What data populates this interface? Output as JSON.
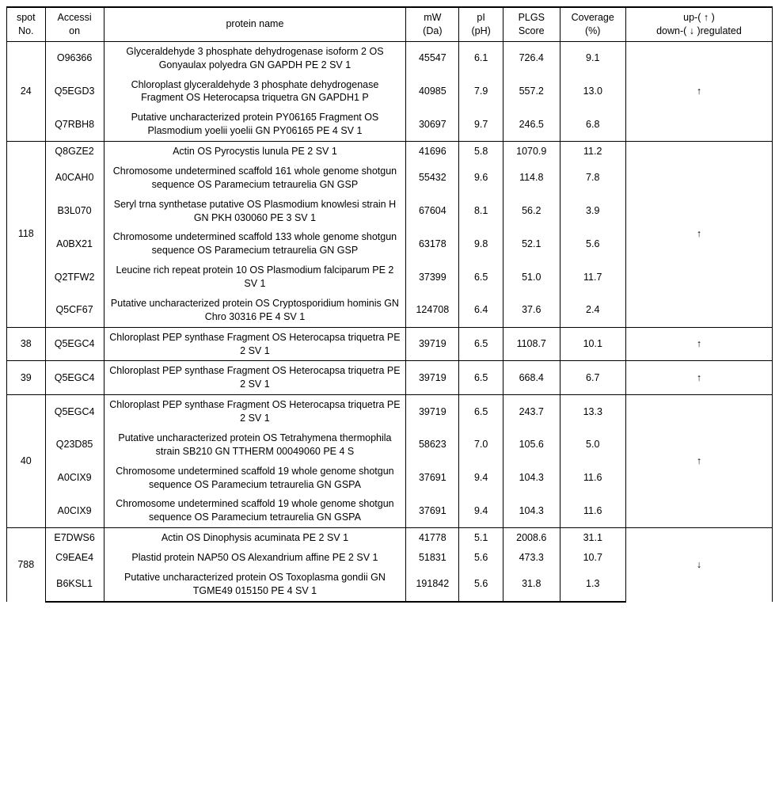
{
  "columns": {
    "spot": "spot\nNo.",
    "acc": "Accessi\non",
    "name": "protein name",
    "mw": "mW\n(Da)",
    "pi": "pI\n(pH)",
    "plgs": "PLGS\nScore",
    "cov": "Coverage\n(%)",
    "reg": "up-( ↑ )\ndown-( ↓ )regulated"
  },
  "groups": [
    {
      "spot": "24",
      "reg": "↑",
      "rows": [
        {
          "acc": "O96366",
          "name": "Glyceraldehyde 3 phosphate  dehydrogenase isoform 2 OS Gonyaulax polyedra GN GAPDH PE 2 SV 1",
          "mw": "45547",
          "pi": "6.1",
          "plgs": "726.4",
          "cov": "9.1"
        },
        {
          "acc": "Q5EGD3",
          "name": "Chloroplast glyceraldehyde 3  phosphate dehydrogenase Fragment OS Heterocapsa triquetra GN GAPDH1 P",
          "mw": "40985",
          "pi": "7.9",
          "plgs": "557.2",
          "cov": "13.0"
        },
        {
          "acc": "Q7RBH8",
          "name": "Putative uncharacterized protein  PY06165 Fragment OS Plasmodium yoelii yoelii GN PY06165 PE 4 SV 1",
          "mw": "30697",
          "pi": "9.7",
          "plgs": "246.5",
          "cov": "6.8"
        }
      ]
    },
    {
      "spot": "118",
      "reg": "↑",
      "rows": [
        {
          "acc": "Q8GZE2",
          "name": "Actin OS Pyrocystis  lunula PE 2 SV 1",
          "mw": "41696",
          "pi": "5.8",
          "plgs": "1070.9",
          "cov": "11.2"
        },
        {
          "acc": "A0CAH0",
          "name": "Chromosome undetermined scaffold 161  whole genome shotgun sequence OS Paramecium tetraurelia GN GSP",
          "mw": "55432",
          "pi": "9.6",
          "plgs": "114.8",
          "cov": "7.8"
        },
        {
          "acc": "B3L070",
          "name": "Seryl trna synthetase putative OS  Plasmodium knowlesi strain H GN PKH 030060 PE 3 SV 1",
          "mw": "67604",
          "pi": "8.1",
          "plgs": "56.2",
          "cov": "3.9"
        },
        {
          "acc": "A0BX21",
          "name": "Chromosome undetermined scaffold 133  whole genome shotgun sequence OS Paramecium tetraurelia GN GSP",
          "mw": "63178",
          "pi": "9.8",
          "plgs": "52.1",
          "cov": "5.6"
        },
        {
          "acc": "Q2TFW2",
          "name": "Leucine rich repeat protein 10 OS  Plasmodium falciparum PE 2 SV 1",
          "mw": "37399",
          "pi": "6.5",
          "plgs": "51.0",
          "cov": "11.7"
        },
        {
          "acc": "Q5CF67",
          "name": "Putative uncharacterized protein OS  Cryptosporidium hominis GN Chro 30316 PE 4 SV 1",
          "mw": "124708",
          "pi": "6.4",
          "plgs": "37.6",
          "cov": "2.4"
        }
      ]
    },
    {
      "spot": "38",
      "reg": "↑",
      "rows": [
        {
          "acc": "Q5EGC4",
          "name": "Chloroplast PEP  synthase Fragment OS Heterocapsa triquetra PE 2 SV 1",
          "mw": "39719",
          "pi": "6.5",
          "plgs": "1108.7",
          "cov": "10.1"
        }
      ]
    },
    {
      "spot": "39",
      "reg": "↑",
      "rows": [
        {
          "acc": "Q5EGC4",
          "name": "Chloroplast PEP  synthase Fragment OS Heterocapsa triquetra PE 2 SV 1",
          "mw": "39719",
          "pi": "6.5",
          "plgs": "668.4",
          "cov": "6.7"
        }
      ]
    },
    {
      "spot": "40",
      "reg": "↑",
      "rows": [
        {
          "acc": "Q5EGC4",
          "name": "Chloroplast PEP  synthase Fragment OS Heterocapsa triquetra PE 2 SV 1",
          "mw": "39719",
          "pi": "6.5",
          "plgs": "243.7",
          "cov": "13.3"
        },
        {
          "acc": "Q23D85",
          "name": "Putative uncharacterized protein OS  Tetrahymena thermophila strain SB210 GN TTHERM 00049060 PE 4 S",
          "mw": "58623",
          "pi": "7.0",
          "plgs": "105.6",
          "cov": "5.0"
        },
        {
          "acc": "A0CIX9",
          "name": "Chromosome undetermined scaffold 19  whole genome shotgun sequence OS Paramecium tetraurelia GN GSPA",
          "mw": "37691",
          "pi": "9.4",
          "plgs": "104.3",
          "cov": "11.6"
        },
        {
          "acc": "A0CIX9",
          "name": "Chromosome undetermined scaffold 19 whole genome shotgun sequence OS Paramecium tetraurelia GN GSPA",
          "mw": "37691",
          "pi": "9.4",
          "plgs": "104.3",
          "cov": "11.6"
        }
      ]
    },
    {
      "spot": "788",
      "reg": "↓",
      "rows": [
        {
          "acc": "E7DWS6",
          "name": "Actin OS Dinophysis  acuminata PE 2 SV 1",
          "mw": "41778",
          "pi": "5.1",
          "plgs": "2008.6",
          "cov": "31.1"
        },
        {
          "acc": "C9EAE4",
          "name": "Plastid protein NAP50 OS Alexandrium  affine PE 2 SV 1",
          "mw": "51831",
          "pi": "5.6",
          "plgs": "473.3",
          "cov": "10.7"
        },
        {
          "acc": "B6KSL1",
          "name": "Putative uncharacterized protein OS  Toxoplasma gondii GN TGME49 015150 PE 4 SV 1",
          "mw": "191842",
          "pi": "5.6",
          "plgs": "31.8",
          "cov": "1.3"
        }
      ]
    }
  ]
}
